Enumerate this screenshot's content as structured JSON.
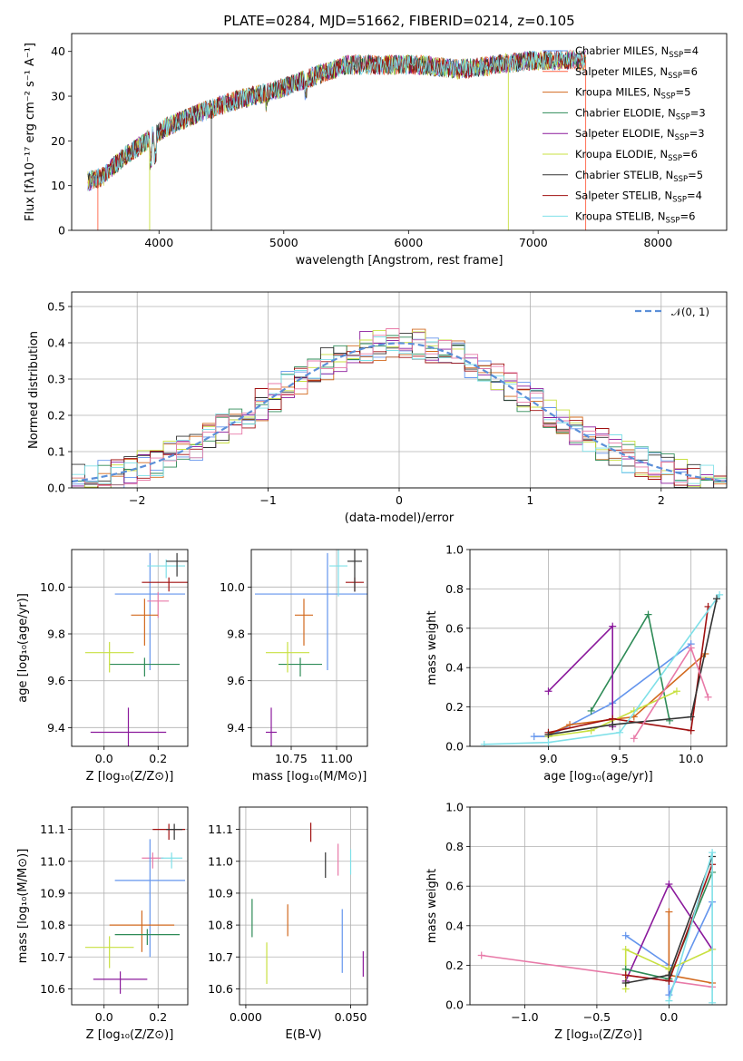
{
  "title": "PLATE=0284, MJD=51662, FIBERID=0214, z=0.105",
  "colors": {
    "Chabrier MILES": "#6495ed",
    "Salpeter MILES": "#ff6347",
    "Kroupa MILES": "#d2691e",
    "Chabrier ELODIE": "#2e8b57",
    "Salpeter ELODIE": "#8b1a9c",
    "Kroupa ELODIE": "#c8e040",
    "Chabrier STELIB": "#333333",
    "Salpeter STELIB": "#a01010",
    "Kroupa STELIB": "#7fe0e8",
    "Pink": "#e87aa8",
    "normal_curve": "#5b8fd8"
  },
  "chart_data": [
    {
      "id": "spectrum",
      "type": "line",
      "title": "PLATE=0284, MJD=51662, FIBERID=0214, z=0.105",
      "xlabel": "wavelength [Angstrom, rest frame]",
      "ylabel": "Flux [fλ10⁻¹⁷ erg cm⁻² s⁻¹ A⁻¹]",
      "xlim": [
        3300,
        8550
      ],
      "ylim": [
        0,
        44
      ],
      "xticks": [
        "4000",
        "5000",
        "6000",
        "7000",
        "8000"
      ],
      "yticks": [
        "0",
        "10",
        "20",
        "30",
        "40"
      ],
      "legend_position": "right",
      "legend": [
        {
          "label": "Chabrier MILES, N",
          "sub": "SSP",
          "tail": "=4"
        },
        {
          "label": "Salpeter MILES, N",
          "sub": "SSP",
          "tail": "=6"
        },
        {
          "label": "Kroupa MILES, N",
          "sub": "SSP",
          "tail": "=5"
        },
        {
          "label": "Chabrier ELODIE, N",
          "sub": "SSP",
          "tail": "=3"
        },
        {
          "label": "Salpeter ELODIE, N",
          "sub": "SSP",
          "tail": "=3"
        },
        {
          "label": "Kroupa ELODIE, N",
          "sub": "SSP",
          "tail": "=6"
        },
        {
          "label": "Chabrier STELIB, N",
          "sub": "SSP",
          "tail": "=5"
        },
        {
          "label": "Salpeter STELIB, N",
          "sub": "SSP",
          "tail": "=4"
        },
        {
          "label": "Kroupa STELIB, N",
          "sub": "SSP",
          "tail": "=6"
        }
      ],
      "continuum": {
        "x": [
          3430,
          3550,
          3700,
          3850,
          3950,
          4050,
          4300,
          4600,
          4900,
          5200,
          5500,
          5800,
          6100,
          6400,
          6700,
          7000,
          7300,
          7420
        ],
        "y": [
          11,
          12,
          16,
          19,
          21,
          23,
          26,
          29,
          31,
          34,
          37,
          37,
          37,
          36,
          37,
          38,
          38,
          38
        ]
      }
    },
    {
      "id": "residuals",
      "type": "line",
      "xlabel": "(data-model)/error",
      "ylabel": "Normed distribution",
      "xlim": [
        -2.5,
        2.5
      ],
      "ylim": [
        0,
        0.54
      ],
      "xticks": [
        "−2",
        "−1",
        "0",
        "1",
        "2"
      ],
      "yticks": [
        "0.0",
        "0.1",
        "0.2",
        "0.3",
        "0.4",
        "0.5"
      ],
      "legend_position": "top-right",
      "legend": [
        "𝒩(0, 1)"
      ],
      "bin_width": 0.1,
      "histogram_lines": 9
    },
    {
      "id": "age-vs-Z",
      "type": "scatter",
      "xlabel": "Z [log₁₀(Z/Z⊙)]",
      "ylabel": "age  [log₁₀(age/yr)]",
      "xlim": [
        -0.12,
        0.31
      ],
      "ylim": [
        9.32,
        10.16
      ],
      "xticks": [
        "0.0",
        "0.2"
      ],
      "yticks": [
        "9.4",
        "9.6",
        "9.8",
        "10.0"
      ],
      "points": [
        {
          "series": "Chabrier MILES",
          "x": 0.17,
          "y": 9.97,
          "xerr": 0.13,
          "yerr": 0.5
        },
        {
          "series": "Pink",
          "x": 0.2,
          "y": 9.94,
          "xerr": 0.04,
          "yerr": 0.11
        },
        {
          "series": "Kroupa MILES",
          "x": 0.15,
          "y": 9.88,
          "xerr": 0.05,
          "yerr": 0.2
        },
        {
          "series": "Chabrier ELODIE",
          "x": 0.15,
          "y": 9.67,
          "xerr": 0.13,
          "yerr": 0.08
        },
        {
          "series": "Kroupa ELODIE",
          "x": 0.02,
          "y": 9.72,
          "xerr": 0.09,
          "yerr": 0.13
        },
        {
          "series": "Salpeter ELODIE",
          "x": 0.09,
          "y": 9.38,
          "xerr": 0.14,
          "yerr": 0.3
        },
        {
          "series": "Salpeter STELIB",
          "x": 0.24,
          "y": 10.02,
          "xerr": 0.1,
          "yerr": 0.06
        },
        {
          "series": "Kroupa STELIB",
          "x": 0.23,
          "y": 10.09,
          "xerr": 0.07,
          "yerr": 0.08
        },
        {
          "series": "Chabrier STELIB",
          "x": 0.27,
          "y": 10.11,
          "xerr": 0.04,
          "yerr": 0.1
        }
      ]
    },
    {
      "id": "age-vs-mass",
      "type": "scatter",
      "xlabel": "mass [log₁₀(M/M⊙)]",
      "ylabel": "",
      "xlim": [
        10.53,
        11.17
      ],
      "ylim": [
        9.32,
        10.16
      ],
      "xticks": [
        "10.75",
        "11.00"
      ],
      "yticks": [
        "9.4",
        "9.6",
        "9.8",
        "10.0"
      ],
      "points": [
        {
          "series": "Chabrier MILES",
          "x": 10.95,
          "y": 9.97,
          "xerr": 0.4,
          "yerr": 0.5
        },
        {
          "series": "Kroupa MILES",
          "x": 10.82,
          "y": 9.88,
          "xerr": 0.05,
          "yerr": 0.2
        },
        {
          "series": "Chabrier ELODIE",
          "x": 10.8,
          "y": 9.67,
          "xerr": 0.12,
          "yerr": 0.08
        },
        {
          "series": "Kroupa ELODIE",
          "x": 10.73,
          "y": 9.72,
          "xerr": 0.12,
          "yerr": 0.13
        },
        {
          "series": "Salpeter ELODIE",
          "x": 10.64,
          "y": 9.38,
          "xerr": 0.03,
          "yerr": 0.3
        },
        {
          "series": "Salpeter STELIB",
          "x": 11.1,
          "y": 10.02,
          "xerr": 0.05,
          "yerr": 0.06
        },
        {
          "series": "Kroupa STELIB",
          "x": 11.01,
          "y": 10.09,
          "xerr": 0.05,
          "yerr": 0.2
        },
        {
          "series": "Chabrier STELIB",
          "x": 11.1,
          "y": 10.11,
          "xerr": 0.04,
          "yerr": 0.2
        }
      ]
    },
    {
      "id": "massweight-vs-age",
      "type": "line",
      "xlabel": "age  [log₁₀(age/yr)]",
      "ylabel": "mass weight",
      "xlim": [
        8.45,
        10.25
      ],
      "ylim": [
        0,
        1
      ],
      "xticks": [
        "9.0",
        "9.5",
        "10.0"
      ],
      "yticks": [
        "0.0",
        "0.2",
        "0.4",
        "0.6",
        "0.8",
        "1.0"
      ],
      "series": [
        {
          "name": "Chabrier MILES",
          "x": [
            8.9,
            9.0,
            9.45,
            10.0
          ],
          "y": [
            0.05,
            0.05,
            0.22,
            0.52
          ]
        },
        {
          "name": "Kroupa MILES",
          "x": [
            9.0,
            9.15,
            9.6,
            10.1
          ],
          "y": [
            0.06,
            0.11,
            0.15,
            0.47
          ]
        },
        {
          "name": "Chabrier ELODIE",
          "x": [
            9.3,
            9.7,
            9.85
          ],
          "y": [
            0.18,
            0.67,
            0.13
          ]
        },
        {
          "name": "Salpeter ELODIE",
          "x": [
            9.0,
            9.45,
            9.45
          ],
          "y": [
            0.28,
            0.61,
            0.1
          ]
        },
        {
          "name": "Kroupa ELODIE",
          "x": [
            9.0,
            9.3,
            9.6,
            9.9
          ],
          "y": [
            0.05,
            0.08,
            0.18,
            0.28
          ]
        },
        {
          "name": "Salpeter STELIB",
          "x": [
            9.0,
            9.45,
            10.0,
            10.12
          ],
          "y": [
            0.07,
            0.14,
            0.08,
            0.71
          ]
        },
        {
          "name": "Kroupa STELIB",
          "x": [
            8.55,
            9.0,
            9.5,
            10.2
          ],
          "y": [
            0.01,
            0.02,
            0.07,
            0.77
          ]
        },
        {
          "name": "Chabrier STELIB",
          "x": [
            9.0,
            9.45,
            10.0,
            10.18
          ],
          "y": [
            0.06,
            0.11,
            0.15,
            0.75
          ]
        },
        {
          "name": "Pink",
          "x": [
            9.6,
            10.0,
            10.12
          ],
          "y": [
            0.04,
            0.5,
            0.25
          ]
        }
      ]
    },
    {
      "id": "mass-vs-Z",
      "type": "scatter",
      "xlabel": "Z [log₁₀(Z/Z⊙)]",
      "ylabel": "mass [log₁₀(M/M⊙)]",
      "xlim": [
        -0.12,
        0.31
      ],
      "ylim": [
        10.55,
        11.17
      ],
      "xticks": [
        "0.0",
        "0.2"
      ],
      "yticks": [
        "10.6",
        "10.7",
        "10.8",
        "10.9",
        "11.0",
        "11.1"
      ],
      "points": [
        {
          "series": "Salpeter STELIB",
          "x": 0.24,
          "y": 11.1,
          "xerr": 0.06,
          "yerr": 0.05
        },
        {
          "series": "Chabrier STELIB",
          "x": 0.26,
          "y": 11.1,
          "xerr": 0.03,
          "yerr": 0.05
        },
        {
          "series": "Pink",
          "x": 0.18,
          "y": 11.01,
          "xerr": 0.04,
          "yerr": 0.05
        },
        {
          "series": "Kroupa STELIB",
          "x": 0.25,
          "y": 11.01,
          "xerr": 0.04,
          "yerr": 0.05
        },
        {
          "series": "Chabrier MILES",
          "x": 0.17,
          "y": 10.94,
          "xerr": 0.13,
          "yerr": 0.37
        },
        {
          "series": "Kroupa MILES",
          "x": 0.14,
          "y": 10.8,
          "xerr": 0.12,
          "yerr": 0.13
        },
        {
          "series": "Chabrier ELODIE",
          "x": 0.16,
          "y": 10.77,
          "xerr": 0.12,
          "yerr": 0.05
        },
        {
          "series": "Kroupa ELODIE",
          "x": 0.02,
          "y": 10.73,
          "xerr": 0.09,
          "yerr": 0.1
        },
        {
          "series": "Salpeter ELODIE",
          "x": 0.06,
          "y": 10.63,
          "xerr": 0.1,
          "yerr": 0.07
        }
      ]
    },
    {
      "id": "mass-vs-EBV",
      "type": "scatter",
      "xlabel": "E(B-V)",
      "ylabel": "",
      "xlim": [
        -0.003,
        0.058
      ],
      "ylim": [
        10.55,
        11.17
      ],
      "xticks": [
        "0.000",
        "0.050"
      ],
      "yticks": [
        "10.6",
        "10.7",
        "10.8",
        "10.9",
        "11.0",
        "11.1"
      ],
      "points": [
        {
          "series": "Chabrier ELODIE",
          "x": 0.003,
          "y": 10.84,
          "yerr": 0.12
        },
        {
          "series": "Kroupa ELODIE",
          "x": 0.01,
          "y": 10.7,
          "yerr": 0.13
        },
        {
          "series": "Kroupa MILES",
          "x": 0.02,
          "y": 10.83,
          "yerr": 0.1
        },
        {
          "series": "Salpeter STELIB",
          "x": 0.031,
          "y": 11.1,
          "yerr": 0.06
        },
        {
          "series": "Chabrier STELIB",
          "x": 0.038,
          "y": 11.0,
          "yerr": 0.08
        },
        {
          "series": "Pink",
          "x": 0.044,
          "y": 11.02,
          "yerr": 0.1
        },
        {
          "series": "Chabrier MILES",
          "x": 0.046,
          "y": 10.78,
          "yerr": 0.2
        },
        {
          "series": "Kroupa STELIB",
          "x": 0.05,
          "y": 11.01,
          "yerr": 0.08
        },
        {
          "series": "Salpeter ELODIE",
          "x": 0.056,
          "y": 10.69,
          "yerr": 0.08
        }
      ]
    },
    {
      "id": "massweight-vs-Z",
      "type": "line",
      "xlabel": "Z [log₁₀(Z/Z⊙)]",
      "ylabel": "mass weight",
      "xlim": [
        -1.38,
        0.4
      ],
      "ylim": [
        0,
        1
      ],
      "xticks": [
        "−1.0",
        "−0.5",
        "0.0"
      ],
      "yticks": [
        "0.0",
        "0.2",
        "0.4",
        "0.6",
        "0.8",
        "1.0"
      ],
      "series": [
        {
          "name": "Pink",
          "x": [
            -1.3,
            0.3
          ],
          "y": [
            0.25,
            0.09
          ]
        },
        {
          "name": "Chabrier MILES",
          "x": [
            -0.3,
            0.0,
            0.0,
            0.3
          ],
          "y": [
            0.35,
            0.2,
            0.05,
            0.52
          ]
        },
        {
          "name": "Salpeter ELODIE",
          "x": [
            -0.3,
            0.0,
            0.3
          ],
          "y": [
            0.12,
            0.61,
            0.28
          ]
        },
        {
          "name": "Kroupa MILES",
          "x": [
            0.0,
            0.0,
            0.3
          ],
          "y": [
            0.47,
            0.15,
            0.11
          ]
        },
        {
          "name": "Kroupa ELODIE",
          "x": [
            -0.3,
            -0.3,
            0.0,
            0.3
          ],
          "y": [
            0.08,
            0.28,
            0.18,
            0.28
          ]
        },
        {
          "name": "Chabrier ELODIE",
          "x": [
            -0.3,
            0.0,
            0.3
          ],
          "y": [
            0.18,
            0.13,
            0.67
          ]
        },
        {
          "name": "Salpeter STELIB",
          "x": [
            -0.3,
            0.0,
            0.3
          ],
          "y": [
            0.15,
            0.12,
            0.71
          ]
        },
        {
          "name": "Chabrier STELIB",
          "x": [
            -0.3,
            0.0,
            0.3
          ],
          "y": [
            0.11,
            0.15,
            0.75
          ]
        },
        {
          "name": "Kroupa STELIB",
          "x": [
            0.0,
            0.3,
            0.3
          ],
          "y": [
            0.02,
            0.77,
            0.01
          ]
        }
      ]
    }
  ]
}
